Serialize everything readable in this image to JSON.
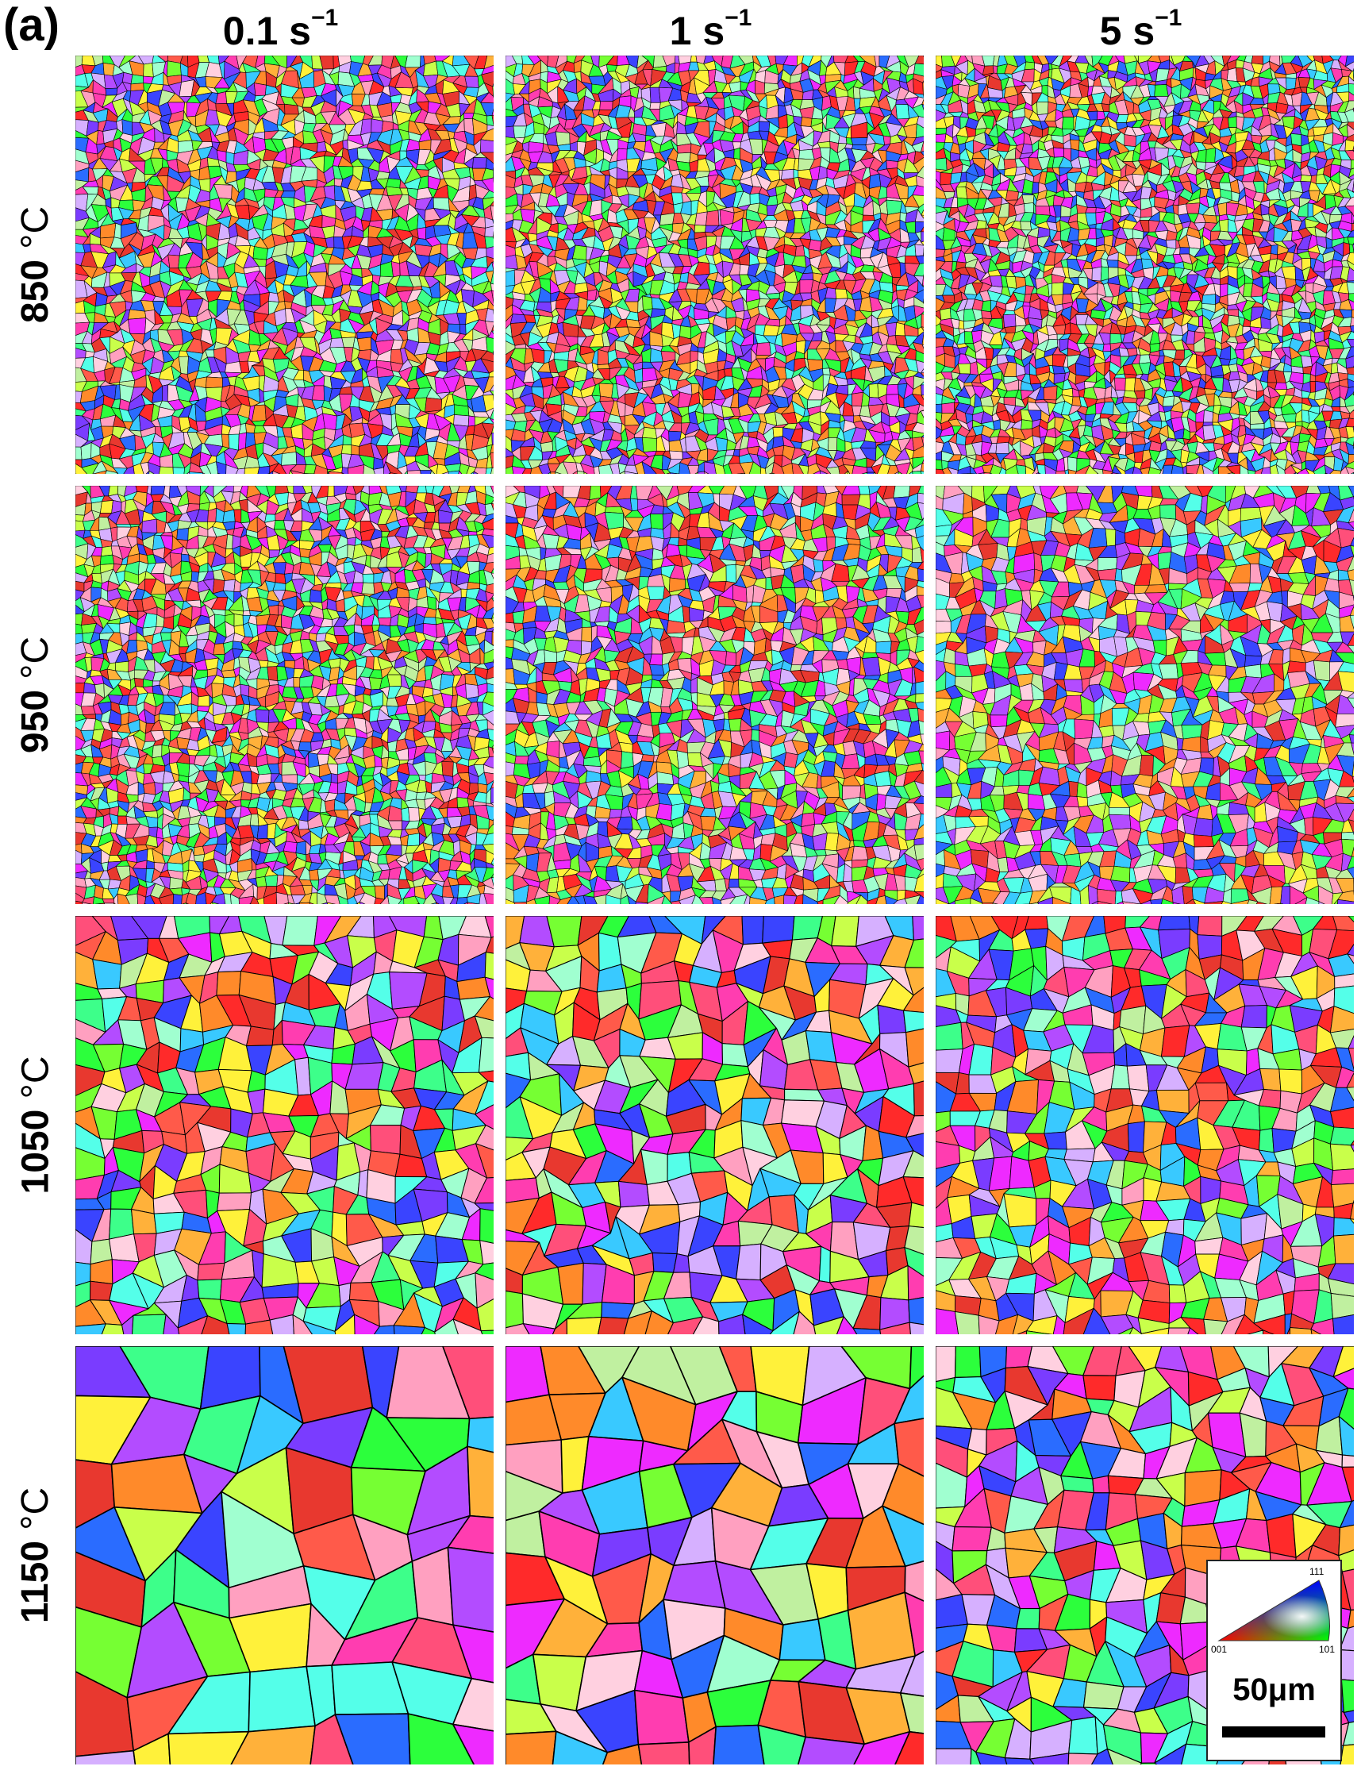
{
  "figure": {
    "panel_label": "(a)",
    "columns": [
      {
        "rate": "0.1 s",
        "exp": "−1"
      },
      {
        "rate": "1 s",
        "exp": "−1"
      },
      {
        "rate": "5 s",
        "exp": "−1"
      }
    ],
    "rows": [
      {
        "temp": "850 ",
        "unit": "°C"
      },
      {
        "temp": "950 ",
        "unit": "°C"
      },
      {
        "temp": "1050 ",
        "unit": "°C"
      },
      {
        "temp": "1150 ",
        "unit": "°C"
      }
    ]
  },
  "legend": {
    "ipf_111": "111",
    "ipf_001": "001",
    "ipf_101": "101",
    "scale_bar": "50μm"
  },
  "colors": {
    "grain_palette": [
      "#ff2a2a",
      "#e8382f",
      "#ff5a4a",
      "#ff4f7a",
      "#ff3db0",
      "#ee2aff",
      "#b34cff",
      "#7a3cff",
      "#3a44ff",
      "#2a6cff",
      "#39c9ff",
      "#54ffe9",
      "#3dff8a",
      "#2cff3c",
      "#76ff33",
      "#c9ff4a",
      "#fff13a",
      "#ffb13a",
      "#ff8a2a",
      "#ffa0c0",
      "#c0f0a0",
      "#a0ffd0",
      "#d6b0ff",
      "#ffd0e0"
    ],
    "grain_boundary": "#000000"
  }
}
